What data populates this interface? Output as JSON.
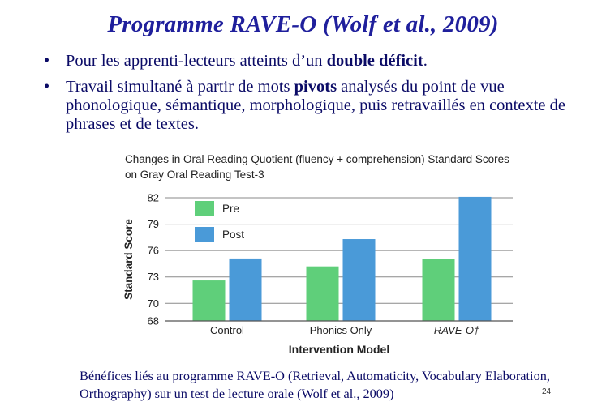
{
  "slide": {
    "title": "Programme RAVE-O (Wolf et al., 2009)",
    "bullets": [
      {
        "symbol": "•",
        "before": "Pour les apprenti-lecteurs atteints d’un ",
        "bold": "double déficit",
        "after": "."
      },
      {
        "symbol": "•",
        "before": "Travail simultané à partir de mots ",
        "bold": "pivots",
        "after": " analysés du point de vue phonologique, sémantique, morphologique, puis retravaillés en contexte de phrases et de textes."
      }
    ],
    "caption": "Bénéfices liés au programme RAVE-O (Retrieval, Automaticity, Vocabulary Elaboration, Orthography) sur un test de lecture orale (Wolf et al., 2009)",
    "page_number": "24"
  },
  "chart_data": {
    "type": "bar",
    "title": "Changes in Oral Reading Quotient (fluency + comprehension) Standard Scores on Gray Oral Reading Test-3",
    "xlabel": "Intervention Model",
    "ylabel": "Standard Score",
    "ylim": [
      68,
      82
    ],
    "yticks": [
      68,
      70,
      73,
      76,
      79,
      82
    ],
    "grid": true,
    "legend_position": "top-left",
    "categories": [
      "Control",
      "Phonics Only",
      "RAVE-O†"
    ],
    "category_styles": [
      "normal",
      "normal",
      "italic"
    ],
    "series": [
      {
        "name": "Pre",
        "color": "#5fcf7a",
        "values": [
          72.6,
          74.2,
          75.0
        ]
      },
      {
        "name": "Post",
        "color": "#4a9ad8",
        "values": [
          75.1,
          77.3,
          82.1
        ]
      }
    ]
  }
}
